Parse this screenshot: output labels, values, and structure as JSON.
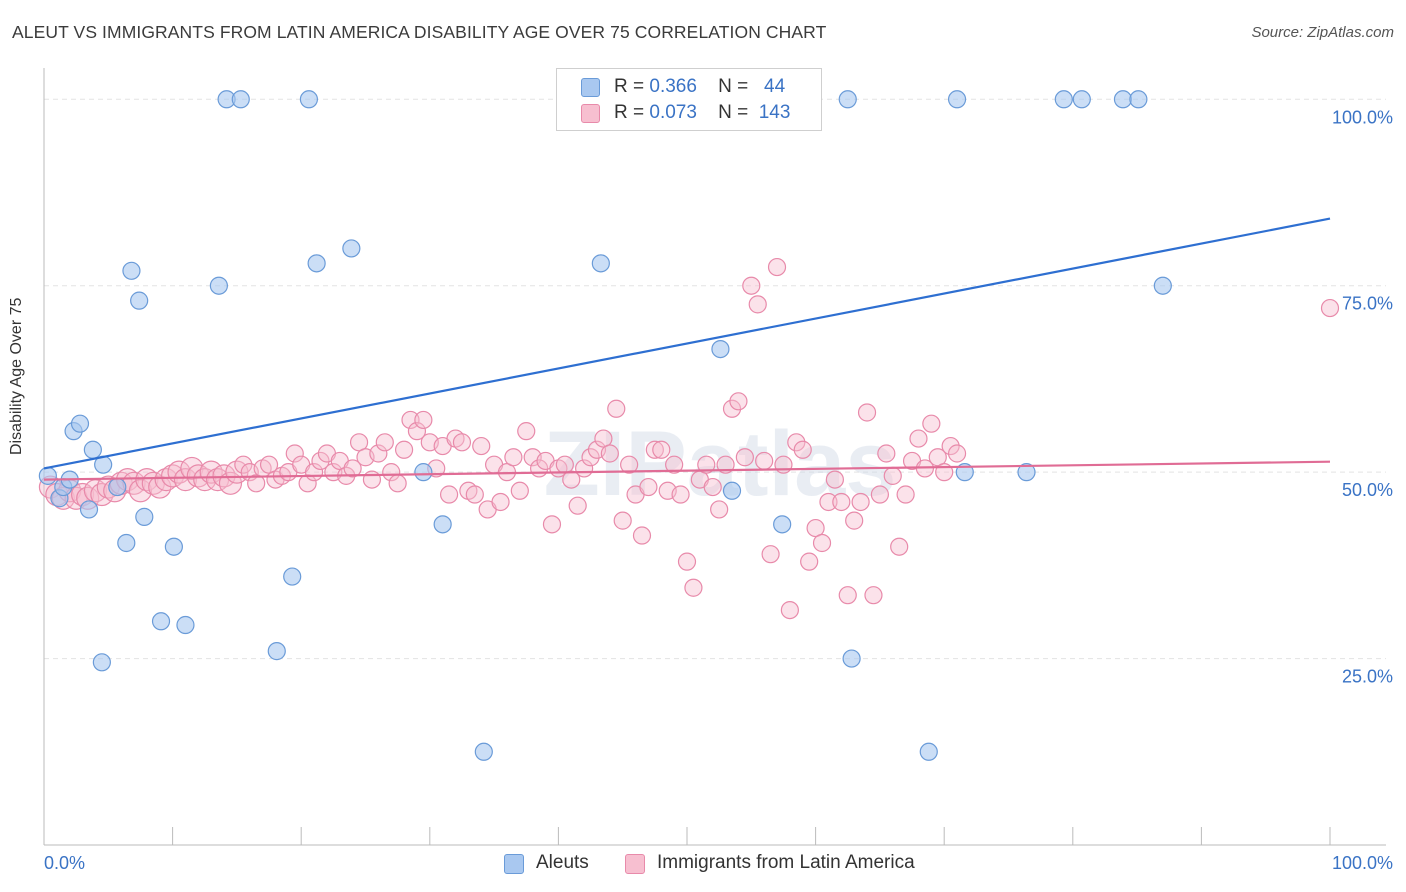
{
  "title": "ALEUT VS IMMIGRANTS FROM LATIN AMERICA DISABILITY AGE OVER 75 CORRELATION CHART",
  "source": "Source: ZipAtlas.com",
  "watermark": "ZIPatlas",
  "legend": {
    "rows": [
      {
        "r_label": "R =",
        "r_value": "0.366",
        "n_label": "N =",
        "n_value": "44"
      },
      {
        "r_label": "R =",
        "r_value": "0.073",
        "n_label": "N =",
        "n_value": "143"
      }
    ]
  },
  "bottom_legend": [
    "Aleuts",
    "Immigrants from Latin America"
  ],
  "colors": {
    "aleut_fill": "#a9c8f0",
    "aleut_stroke": "#6a9bd8",
    "aleut_line": "#2e6fd1",
    "latin_fill": "#f7bfd0",
    "latin_stroke": "#e88aaa",
    "latin_line": "#e06c95",
    "tick_label": "#3a73c5",
    "grid": "#e3e3e3"
  },
  "chart_data": {
    "type": "scatter",
    "xlabel": "",
    "ylabel": "Disability Age Over 75",
    "xlim": [
      0,
      100
    ],
    "ylim": [
      0,
      105
    ],
    "x_tick_labels": [
      {
        "value": 0,
        "label": "0.0%"
      },
      {
        "value": 100,
        "label": "100.0%"
      }
    ],
    "y_tick_labels": [
      {
        "value": 25,
        "label": "25.0%"
      },
      {
        "value": 50,
        "label": "50.0%"
      },
      {
        "value": 75,
        "label": "75.0%"
      },
      {
        "value": 100,
        "label": "100.0%"
      }
    ],
    "x_minor_ticks": [
      10,
      20,
      30,
      40,
      50,
      60,
      70,
      80,
      90
    ],
    "grid": true,
    "series": [
      {
        "name": "Aleuts",
        "r": 0.366,
        "n": 44,
        "trend": [
          [
            0,
            50.5
          ],
          [
            100,
            84
          ]
        ],
        "points": [
          [
            0.3,
            49.5
          ],
          [
            1.2,
            46.5
          ],
          [
            1.5,
            48
          ],
          [
            2,
            49
          ],
          [
            2.3,
            55.5
          ],
          [
            2.8,
            56.5
          ],
          [
            3.5,
            45
          ],
          [
            3.8,
            53
          ],
          [
            4.5,
            24.5
          ],
          [
            4.6,
            51
          ],
          [
            5.7,
            48
          ],
          [
            6.4,
            40.5
          ],
          [
            6.8,
            77
          ],
          [
            7.4,
            73
          ],
          [
            7.8,
            44
          ],
          [
            9.1,
            30
          ],
          [
            10.1,
            40
          ],
          [
            11,
            29.5
          ],
          [
            13.6,
            75
          ],
          [
            14.2,
            100
          ],
          [
            15.3,
            100
          ],
          [
            18.1,
            26
          ],
          [
            19.3,
            36
          ],
          [
            20.6,
            100
          ],
          [
            21.2,
            78
          ],
          [
            23.9,
            80
          ],
          [
            29.5,
            50
          ],
          [
            31,
            43
          ],
          [
            34.2,
            12.5
          ],
          [
            43.3,
            78
          ],
          [
            52.6,
            66.5
          ],
          [
            53.5,
            47.5
          ],
          [
            57.4,
            43
          ],
          [
            62.5,
            100
          ],
          [
            62.8,
            25
          ],
          [
            68.8,
            12.5
          ],
          [
            71,
            100
          ],
          [
            71.6,
            50
          ],
          [
            76.4,
            50
          ],
          [
            79.3,
            100
          ],
          [
            80.7,
            100
          ],
          [
            83.9,
            100
          ],
          [
            85.1,
            100
          ],
          [
            87,
            75
          ]
        ]
      },
      {
        "name": "Immigrants from Latin America",
        "r": 0.073,
        "n": 143,
        "trend": [
          [
            0,
            49
          ],
          [
            100,
            51.4
          ]
        ],
        "points": [
          [
            0.5,
            48
          ],
          [
            1,
            47
          ],
          [
            1.5,
            46.5
          ],
          [
            2,
            47.5
          ],
          [
            2.5,
            46.5
          ],
          [
            3,
            47
          ],
          [
            3.4,
            46.5
          ],
          [
            4,
            47.5
          ],
          [
            4.5,
            47
          ],
          [
            5,
            48
          ],
          [
            5.5,
            47.5
          ],
          [
            6,
            48.5
          ],
          [
            6.5,
            49
          ],
          [
            7,
            48.5
          ],
          [
            7.5,
            47.5
          ],
          [
            8,
            49
          ],
          [
            8.5,
            48.5
          ],
          [
            9,
            48
          ],
          [
            9.5,
            49
          ],
          [
            10,
            49.5
          ],
          [
            10.5,
            50
          ],
          [
            11,
            49
          ],
          [
            11.5,
            50.5
          ],
          [
            12,
            49.5
          ],
          [
            12.5,
            49
          ],
          [
            13,
            50
          ],
          [
            13.5,
            49
          ],
          [
            14,
            49.5
          ],
          [
            14.5,
            48.5
          ],
          [
            15,
            50
          ],
          [
            15.5,
            51
          ],
          [
            16,
            50
          ],
          [
            16.5,
            48.5
          ],
          [
            17,
            50.5
          ],
          [
            17.5,
            51
          ],
          [
            18,
            49
          ],
          [
            18.5,
            49.5
          ],
          [
            19,
            50
          ],
          [
            19.5,
            52.5
          ],
          [
            20,
            51
          ],
          [
            20.5,
            48.5
          ],
          [
            21,
            50
          ],
          [
            21.5,
            51.5
          ],
          [
            22,
            52.5
          ],
          [
            22.5,
            50
          ],
          [
            23,
            51.5
          ],
          [
            23.5,
            49.5
          ],
          [
            24,
            50.5
          ],
          [
            24.5,
            54
          ],
          [
            25,
            52
          ],
          [
            25.5,
            49
          ],
          [
            26,
            52.5
          ],
          [
            26.5,
            54
          ],
          [
            27,
            50
          ],
          [
            27.5,
            48.5
          ],
          [
            28,
            53
          ],
          [
            28.5,
            57
          ],
          [
            29,
            55.5
          ],
          [
            29.5,
            57
          ],
          [
            30,
            54
          ],
          [
            30.5,
            50.5
          ],
          [
            31,
            53.5
          ],
          [
            31.5,
            47
          ],
          [
            32,
            54.5
          ],
          [
            32.5,
            54
          ],
          [
            33,
            47.5
          ],
          [
            33.5,
            47
          ],
          [
            34,
            53.5
          ],
          [
            34.5,
            45
          ],
          [
            35,
            51
          ],
          [
            35.5,
            46
          ],
          [
            36,
            50
          ],
          [
            36.5,
            52
          ],
          [
            37,
            47.5
          ],
          [
            37.5,
            55.5
          ],
          [
            38,
            52
          ],
          [
            38.5,
            50.5
          ],
          [
            39,
            51.5
          ],
          [
            39.5,
            43
          ],
          [
            40,
            50.5
          ],
          [
            40.5,
            51
          ],
          [
            41,
            49
          ],
          [
            41.5,
            45.5
          ],
          [
            42,
            50.5
          ],
          [
            42.5,
            52
          ],
          [
            43,
            53
          ],
          [
            43.5,
            54.5
          ],
          [
            44,
            52.5
          ],
          [
            44.5,
            58.5
          ],
          [
            45,
            43.5
          ],
          [
            45.5,
            51
          ],
          [
            46,
            47
          ],
          [
            46.5,
            41.5
          ],
          [
            47,
            48
          ],
          [
            47.5,
            53
          ],
          [
            48,
            53
          ],
          [
            48.5,
            47.5
          ],
          [
            49,
            51
          ],
          [
            49.5,
            47
          ],
          [
            50,
            38
          ],
          [
            50.5,
            34.5
          ],
          [
            51,
            49
          ],
          [
            51.5,
            51
          ],
          [
            52,
            48
          ],
          [
            52.5,
            45
          ],
          [
            53,
            51
          ],
          [
            53.5,
            58.5
          ],
          [
            54,
            59.5
          ],
          [
            54.5,
            52
          ],
          [
            55,
            75
          ],
          [
            55.5,
            72.5
          ],
          [
            56,
            51.5
          ],
          [
            56.5,
            39
          ],
          [
            57,
            77.5
          ],
          [
            57.5,
            51
          ],
          [
            58,
            31.5
          ],
          [
            58.5,
            54
          ],
          [
            59,
            53
          ],
          [
            59.5,
            38
          ],
          [
            60,
            42.5
          ],
          [
            60.5,
            40.5
          ],
          [
            61,
            46
          ],
          [
            61.5,
            49
          ],
          [
            62,
            46
          ],
          [
            62.5,
            33.5
          ],
          [
            63,
            43.5
          ],
          [
            63.5,
            46
          ],
          [
            64,
            58
          ],
          [
            64.5,
            33.5
          ],
          [
            65,
            47
          ],
          [
            65.5,
            52.5
          ],
          [
            66,
            49.5
          ],
          [
            66.5,
            40
          ],
          [
            67,
            47
          ],
          [
            67.5,
            51.5
          ],
          [
            68,
            54.5
          ],
          [
            68.5,
            50.5
          ],
          [
            69,
            56.5
          ],
          [
            69.5,
            52
          ],
          [
            70,
            50
          ],
          [
            70.5,
            53.5
          ],
          [
            71,
            52.5
          ],
          [
            100,
            72
          ]
        ]
      }
    ]
  }
}
